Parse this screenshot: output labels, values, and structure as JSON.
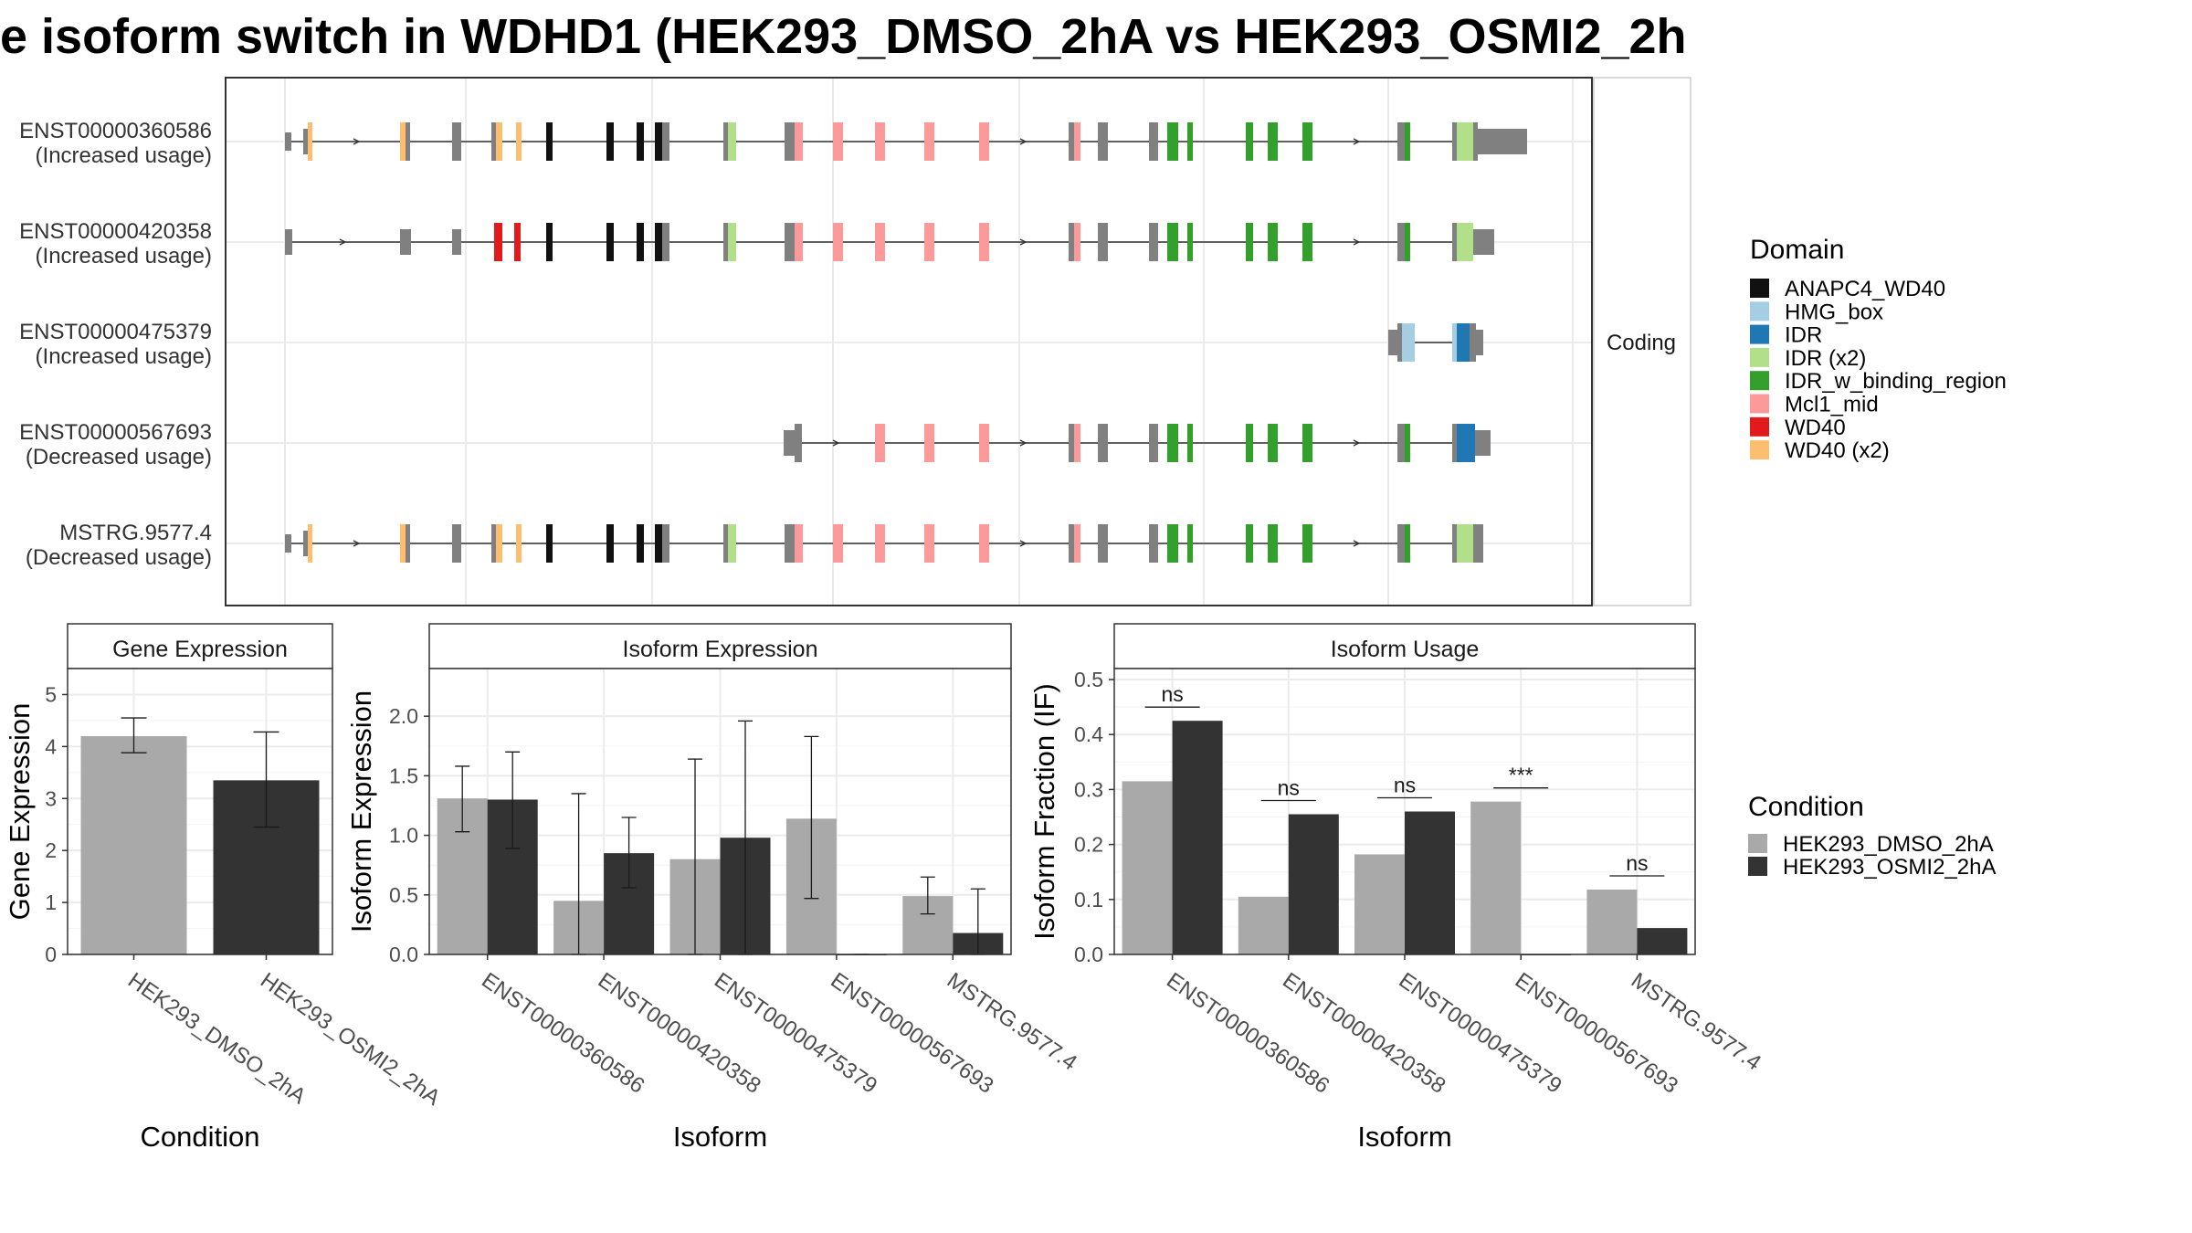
{
  "title": "e isoform switch in WDHD1 (HEK293_DMSO_2hA vs HEK293_OSMI2_2h",
  "structure_panel": {
    "facet_label": "Coding",
    "isoforms": [
      {
        "id": "ENST00000360586",
        "usage": "(Increased usage)"
      },
      {
        "id": "ENST00000420358",
        "usage": "(Increased usage)"
      },
      {
        "id": "ENST00000475379",
        "usage": "(Increased usage)"
      },
      {
        "id": "ENST00000567693",
        "usage": "(Decreased usage)"
      },
      {
        "id": "MSTRG.9577.4",
        "usage": "(Decreased usage)"
      }
    ]
  },
  "domain_legend": {
    "title": "Domain",
    "items": [
      {
        "label": "ANAPC4_WD40",
        "color": "#111111"
      },
      {
        "label": "HMG_box",
        "color": "#a6cee3"
      },
      {
        "label": "IDR",
        "color": "#1f78b4"
      },
      {
        "label": "IDR (x2)",
        "color": "#b2df8a"
      },
      {
        "label": "IDR_w_binding_region",
        "color": "#33a02c"
      },
      {
        "label": "Mcl1_mid",
        "color": "#fb9a99"
      },
      {
        "label": "WD40",
        "color": "#e31a1c"
      },
      {
        "label": "WD40 (x2)",
        "color": "#fdbf6f"
      }
    ]
  },
  "condition_legend": {
    "title": "Condition",
    "items": [
      {
        "label": "HEK293_DMSO_2hA",
        "color": "#a9a9a9"
      },
      {
        "label": "HEK293_OSMI2_2hA",
        "color": "#333333"
      }
    ]
  },
  "chart_data": [
    {
      "type": "bar",
      "panel_title": "Gene Expression",
      "xlabel": "Condition",
      "ylabel": "Gene Expression",
      "ylim": [
        0,
        5.5
      ],
      "yticks": [
        0,
        1,
        2,
        3,
        4,
        5
      ],
      "categories": [
        "HEK293_DMSO_2hA",
        "HEK293_OSMI2_2hA"
      ],
      "values": [
        4.2,
        3.35
      ],
      "error_low": [
        3.88,
        2.45
      ],
      "error_high": [
        4.55,
        4.28
      ]
    },
    {
      "type": "bar",
      "panel_title": "Isoform Expression",
      "xlabel": "Isoform",
      "ylabel": "Isoform Expression",
      "ylim": [
        0,
        2.4
      ],
      "yticks": [
        0.0,
        0.5,
        1.0,
        1.5,
        2.0
      ],
      "categories": [
        "ENST00000360586",
        "ENST00000420358",
        "ENST00000475379",
        "ENST00000567693",
        "MSTRG.9577.4"
      ],
      "series": [
        {
          "name": "HEK293_DMSO_2hA",
          "values": [
            1.31,
            0.45,
            0.8,
            1.14,
            0.49
          ],
          "error_low": [
            1.03,
            0.0,
            0.0,
            0.47,
            0.34
          ],
          "error_high": [
            1.58,
            1.35,
            1.64,
            1.83,
            0.65
          ]
        },
        {
          "name": "HEK293_OSMI2_2hA",
          "values": [
            1.3,
            0.85,
            0.98,
            0.0,
            0.18
          ],
          "error_low": [
            0.89,
            0.56,
            0.0,
            0.0,
            0.0
          ],
          "error_high": [
            1.7,
            1.15,
            1.96,
            0.0,
            0.55
          ]
        }
      ]
    },
    {
      "type": "bar",
      "panel_title": "Isoform Usage",
      "xlabel": "Isoform",
      "ylabel": "Isoform Fraction (IF)",
      "ylim": [
        0,
        0.52
      ],
      "yticks": [
        0.0,
        0.1,
        0.2,
        0.3,
        0.4,
        0.5
      ],
      "categories": [
        "ENST00000360586",
        "ENST00000420358",
        "ENST00000475379",
        "ENST00000567693",
        "MSTRG.9577.4"
      ],
      "series": [
        {
          "name": "HEK293_DMSO_2hA",
          "values": [
            0.315,
            0.105,
            0.182,
            0.278,
            0.118
          ]
        },
        {
          "name": "HEK293_OSMI2_2hA",
          "values": [
            0.425,
            0.255,
            0.26,
            0.0,
            0.048
          ]
        }
      ],
      "annotations": [
        "ns",
        "ns",
        "ns",
        "***",
        "ns"
      ]
    }
  ]
}
